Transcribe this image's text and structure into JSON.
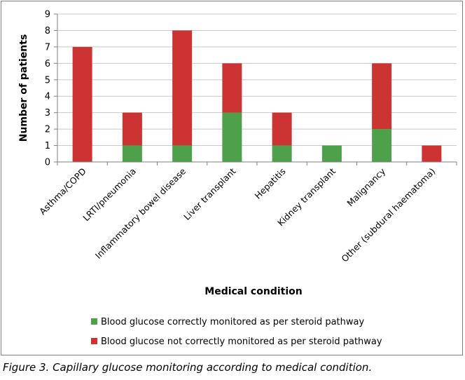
{
  "chart_data": {
    "type": "bar",
    "stacked": true,
    "title": "",
    "xlabel": "Medical condition",
    "ylabel": "Number of patients",
    "ylim": [
      0,
      9
    ],
    "yticks": [
      0,
      1,
      2,
      3,
      4,
      5,
      6,
      7,
      8,
      9
    ],
    "grid": true,
    "legend_position": "bottom",
    "categories": [
      "Asthma/COPD",
      "LRTI/pneumonia",
      "Inflammatory bowel disease",
      "Liver transplant",
      "Hepatitis",
      "Kidney transplant",
      "Malignancy",
      "Other (subdural haematoma)"
    ],
    "series": [
      {
        "name": "Blood glucose correctly monitored as per steroid pathway",
        "color": "#4ea14a",
        "values": [
          0,
          1,
          1,
          3,
          1,
          1,
          2,
          0
        ]
      },
      {
        "name": "Blood glucose not correctly monitored as per steroid pathway",
        "color": "#cc3333",
        "values": [
          7,
          2,
          7,
          3,
          2,
          0,
          4,
          1
        ]
      }
    ]
  },
  "caption": "Figure 3. Capillary glucose monitoring according to medical condition."
}
